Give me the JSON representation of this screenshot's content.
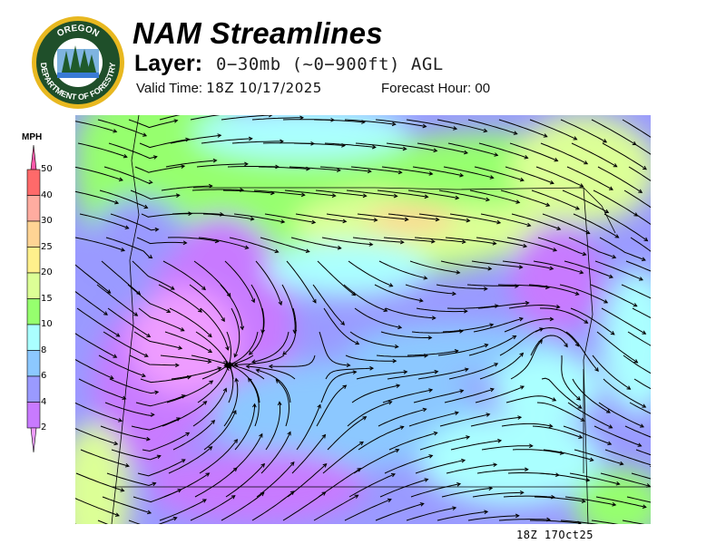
{
  "header": {
    "title": "NAM Streamlines",
    "layer_label": "Layer:",
    "layer_value": "0−30mb (~0−900ft) AGL",
    "valid_label": "Valid Time:",
    "valid_value": "18Z 10/17/2025",
    "forecast_label": "Forecast Hour:",
    "forecast_value": "00"
  },
  "logo": {
    "text_top": "OREGON",
    "text_bottom": "DEPARTMENT OF FORESTRY",
    "colors": {
      "ring": "#1f4f2a",
      "gold": "#e8b820"
    }
  },
  "legend": {
    "unit": "MPH",
    "ticks": [
      "50",
      "40",
      "30",
      "25",
      "20",
      "15",
      "10",
      "8",
      "6",
      "4",
      "2"
    ],
    "colors": [
      "#ff6a6a",
      "#ffaca0",
      "#ffd494",
      "#fff08c",
      "#dcff96",
      "#96ff6e",
      "#aaffff",
      "#8cc8ff",
      "#9a9aff",
      "#c87aff"
    ],
    "above_color": "#ff5aaa",
    "below_color": "#ee9cff"
  },
  "map": {
    "streamline_color": "#000000",
    "border_color": "#000000"
  },
  "footer": {
    "stamp": "18Z 17Oct25"
  }
}
